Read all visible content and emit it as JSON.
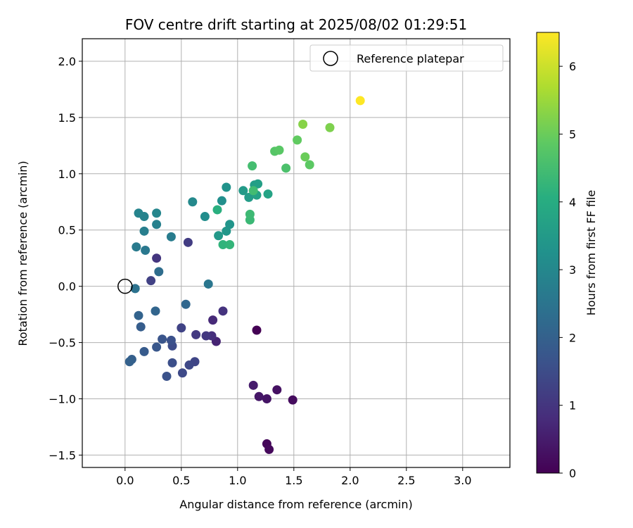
{
  "chart_data": {
    "type": "scatter",
    "title": "FOV centre drift starting at 2025/08/02 01:29:51",
    "xlabel": "Angular distance from reference (arcmin)",
    "ylabel": "Rotation from reference (arcmin)",
    "xlim": [
      -0.38,
      3.42
    ],
    "ylim": [
      -1.61,
      2.2
    ],
    "x_ticks": [
      0.0,
      0.5,
      1.0,
      1.5,
      2.0,
      2.5,
      3.0
    ],
    "x_tick_labels": [
      "0.0",
      "0.5",
      "1.0",
      "1.5",
      "2.0",
      "2.5",
      "3.0"
    ],
    "y_ticks": [
      -1.5,
      -1.0,
      -0.5,
      0.0,
      0.5,
      1.0,
      1.5,
      2.0
    ],
    "y_tick_labels": [
      "−1.5",
      "−1.0",
      "−0.5",
      "0.0",
      "0.5",
      "1.0",
      "1.5",
      "2.0"
    ],
    "grid": true,
    "legend": {
      "placement": "top-right",
      "entries": [
        "Reference platepar"
      ]
    },
    "reference": {
      "x": 0.0,
      "y": 0.0
    },
    "colorbar": {
      "label": "Hours from first FF file",
      "range": [
        0,
        6.5
      ],
      "ticks": [
        0,
        1,
        2,
        3,
        4,
        5,
        6
      ],
      "tick_labels": [
        "0",
        "1",
        "2",
        "3",
        "4",
        "5",
        "6"
      ],
      "colormap": "viridis"
    },
    "points": [
      {
        "x": 1.17,
        "y": -0.39,
        "t": 0.0
      },
      {
        "x": 1.26,
        "y": -1.4,
        "t": 0.1
      },
      {
        "x": 1.28,
        "y": -1.45,
        "t": 0.15
      },
      {
        "x": 1.49,
        "y": -1.01,
        "t": 0.2
      },
      {
        "x": 1.35,
        "y": -0.92,
        "t": 0.3
      },
      {
        "x": 1.26,
        "y": -1.0,
        "t": 0.35
      },
      {
        "x": 1.19,
        "y": -0.98,
        "t": 0.4
      },
      {
        "x": 1.14,
        "y": -0.88,
        "t": 0.5
      },
      {
        "x": 0.81,
        "y": -0.49,
        "t": 0.65
      },
      {
        "x": 0.78,
        "y": -0.3,
        "t": 0.75
      },
      {
        "x": 0.77,
        "y": -0.44,
        "t": 0.85
      },
      {
        "x": 0.87,
        "y": -0.22,
        "t": 0.95
      },
      {
        "x": 0.72,
        "y": -0.44,
        "t": 1.05
      },
      {
        "x": 0.63,
        "y": -0.43,
        "t": 1.1
      },
      {
        "x": 0.28,
        "y": 0.25,
        "t": 1.0
      },
      {
        "x": 0.56,
        "y": 0.39,
        "t": 1.15
      },
      {
        "x": 0.23,
        "y": 0.05,
        "t": 1.25
      },
      {
        "x": 0.5,
        "y": -0.37,
        "t": 1.3
      },
      {
        "x": 0.62,
        "y": -0.67,
        "t": 1.35
      },
      {
        "x": 0.57,
        "y": -0.7,
        "t": 1.4
      },
      {
        "x": 0.51,
        "y": -0.77,
        "t": 1.45
      },
      {
        "x": 0.42,
        "y": -0.53,
        "t": 1.5
      },
      {
        "x": 0.42,
        "y": -0.68,
        "t": 1.55
      },
      {
        "x": 0.41,
        "y": -0.48,
        "t": 1.6
      },
      {
        "x": 0.37,
        "y": -0.8,
        "t": 1.65
      },
      {
        "x": 0.33,
        "y": -0.47,
        "t": 1.7
      },
      {
        "x": 0.28,
        "y": -0.54,
        "t": 1.75
      },
      {
        "x": 0.17,
        "y": -0.58,
        "t": 1.85
      },
      {
        "x": 0.14,
        "y": -0.36,
        "t": 1.9
      },
      {
        "x": 0.06,
        "y": -0.65,
        "t": 1.95
      },
      {
        "x": 0.04,
        "y": -0.67,
        "t": 2.0
      },
      {
        "x": 0.12,
        "y": -0.26,
        "t": 2.05
      },
      {
        "x": 0.27,
        "y": -0.22,
        "t": 2.1
      },
      {
        "x": 0.54,
        "y": -0.16,
        "t": 2.15
      },
      {
        "x": 0.3,
        "y": 0.13,
        "t": 2.3
      },
      {
        "x": 0.09,
        "y": -0.02,
        "t": 2.45
      },
      {
        "x": 0.74,
        "y": 0.02,
        "t": 2.55
      },
      {
        "x": 0.18,
        "y": 0.32,
        "t": 2.6
      },
      {
        "x": 0.1,
        "y": 0.35,
        "t": 2.65
      },
      {
        "x": 0.41,
        "y": 0.44,
        "t": 2.7
      },
      {
        "x": 0.17,
        "y": 0.49,
        "t": 2.75
      },
      {
        "x": 0.28,
        "y": 0.55,
        "t": 2.8
      },
      {
        "x": 0.17,
        "y": 0.62,
        "t": 2.85
      },
      {
        "x": 0.12,
        "y": 0.65,
        "t": 2.9
      },
      {
        "x": 0.28,
        "y": 0.65,
        "t": 2.95
      },
      {
        "x": 0.6,
        "y": 0.75,
        "t": 3.05
      },
      {
        "x": 0.71,
        "y": 0.62,
        "t": 3.15
      },
      {
        "x": 0.86,
        "y": 0.76,
        "t": 3.2
      },
      {
        "x": 0.9,
        "y": 0.88,
        "t": 3.3
      },
      {
        "x": 0.93,
        "y": 0.55,
        "t": 3.35
      },
      {
        "x": 0.9,
        "y": 0.49,
        "t": 3.4
      },
      {
        "x": 0.83,
        "y": 0.45,
        "t": 3.45
      },
      {
        "x": 1.05,
        "y": 0.85,
        "t": 3.5
      },
      {
        "x": 1.1,
        "y": 0.79,
        "t": 3.55
      },
      {
        "x": 1.15,
        "y": 0.9,
        "t": 3.6
      },
      {
        "x": 1.18,
        "y": 0.91,
        "t": 3.65
      },
      {
        "x": 1.17,
        "y": 0.81,
        "t": 3.7
      },
      {
        "x": 1.27,
        "y": 0.82,
        "t": 3.75
      },
      {
        "x": 0.82,
        "y": 0.68,
        "t": 4.1
      },
      {
        "x": 0.87,
        "y": 0.37,
        "t": 4.2
      },
      {
        "x": 0.93,
        "y": 0.37,
        "t": 4.25
      },
      {
        "x": 1.11,
        "y": 0.59,
        "t": 4.35
      },
      {
        "x": 1.11,
        "y": 0.64,
        "t": 4.4
      },
      {
        "x": 1.14,
        "y": 0.85,
        "t": 4.45
      },
      {
        "x": 1.13,
        "y": 1.07,
        "t": 4.5
      },
      {
        "x": 1.43,
        "y": 1.05,
        "t": 4.6
      },
      {
        "x": 1.33,
        "y": 1.2,
        "t": 4.75
      },
      {
        "x": 1.37,
        "y": 1.21,
        "t": 4.8
      },
      {
        "x": 1.64,
        "y": 1.08,
        "t": 4.85
      },
      {
        "x": 1.53,
        "y": 1.3,
        "t": 4.9
      },
      {
        "x": 1.6,
        "y": 1.15,
        "t": 5.0
      },
      {
        "x": 1.82,
        "y": 1.41,
        "t": 5.2
      },
      {
        "x": 1.58,
        "y": 1.44,
        "t": 5.3
      },
      {
        "x": 2.09,
        "y": 1.65,
        "t": 6.5
      }
    ]
  }
}
